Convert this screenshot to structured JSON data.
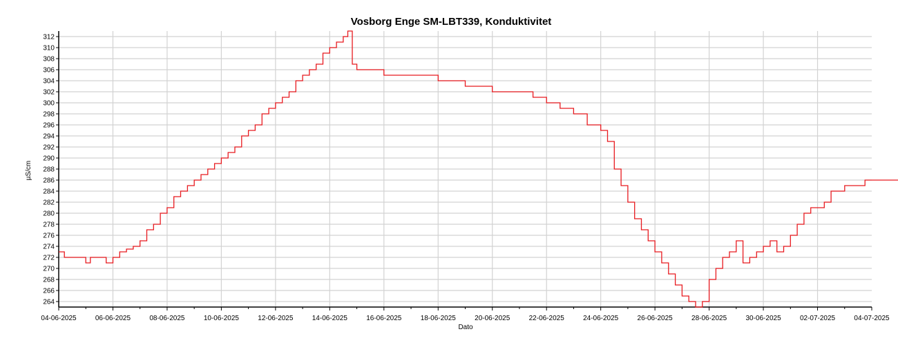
{
  "chart_data": {
    "type": "line",
    "title": "Vosborg Enge SM-LBT339, Konduktivitet",
    "xlabel": "Dato",
    "ylabel": "µS/cm",
    "x_tick_labels": [
      "04-06-2025",
      "06-06-2025",
      "08-06-2025",
      "10-06-2025",
      "12-06-2025",
      "14-06-2025",
      "16-06-2025",
      "18-06-2025",
      "20-06-2025",
      "22-06-2025",
      "24-06-2025",
      "26-06-2025",
      "28-06-2025",
      "30-06-2025",
      "02-07-2025",
      "04-07-2025"
    ],
    "y_tick_labels": [
      "264",
      "266",
      "268",
      "270",
      "272",
      "274",
      "276",
      "278",
      "280",
      "282",
      "284",
      "286",
      "288",
      "290",
      "292",
      "294",
      "296",
      "298",
      "300",
      "302",
      "304",
      "306",
      "308",
      "310",
      "312"
    ],
    "xlim": [
      "2025-06-04",
      "2025-07-04"
    ],
    "ylim": [
      263,
      313
    ],
    "grid": true,
    "line_color": "#e8191e",
    "series": [
      {
        "values": [
          [
            "2025-06-04T00:00",
            273
          ],
          [
            "2025-06-04T05:00",
            272
          ],
          [
            "2025-06-04T12:00",
            272
          ],
          [
            "2025-06-04T20:00",
            272
          ],
          [
            "2025-06-05T00:00",
            271
          ],
          [
            "2025-06-05T04:00",
            272
          ],
          [
            "2025-06-05T12:00",
            272
          ],
          [
            "2025-06-05T18:00",
            271
          ],
          [
            "2025-06-06T00:00",
            272
          ],
          [
            "2025-06-06T06:00",
            273
          ],
          [
            "2025-06-06T12:00",
            273.5
          ],
          [
            "2025-06-06T18:00",
            274
          ],
          [
            "2025-06-07T00:00",
            275
          ],
          [
            "2025-06-07T06:00",
            277
          ],
          [
            "2025-06-07T12:00",
            278
          ],
          [
            "2025-06-07T18:00",
            280
          ],
          [
            "2025-06-08T00:00",
            281
          ],
          [
            "2025-06-08T06:00",
            283
          ],
          [
            "2025-06-08T12:00",
            284
          ],
          [
            "2025-06-08T18:00",
            285
          ],
          [
            "2025-06-09T00:00",
            286
          ],
          [
            "2025-06-09T06:00",
            287
          ],
          [
            "2025-06-09T12:00",
            288
          ],
          [
            "2025-06-09T18:00",
            289
          ],
          [
            "2025-06-10T00:00",
            290
          ],
          [
            "2025-06-10T06:00",
            291
          ],
          [
            "2025-06-10T12:00",
            292
          ],
          [
            "2025-06-10T18:00",
            294
          ],
          [
            "2025-06-11T00:00",
            295
          ],
          [
            "2025-06-11T06:00",
            296
          ],
          [
            "2025-06-11T12:00",
            298
          ],
          [
            "2025-06-11T18:00",
            299
          ],
          [
            "2025-06-12T00:00",
            300
          ],
          [
            "2025-06-12T06:00",
            301
          ],
          [
            "2025-06-12T12:00",
            302
          ],
          [
            "2025-06-12T18:00",
            304
          ],
          [
            "2025-06-13T00:00",
            305
          ],
          [
            "2025-06-13T06:00",
            306
          ],
          [
            "2025-06-13T12:00",
            307
          ],
          [
            "2025-06-13T18:00",
            309
          ],
          [
            "2025-06-14T00:00",
            310
          ],
          [
            "2025-06-14T06:00",
            311
          ],
          [
            "2025-06-14T12:00",
            312
          ],
          [
            "2025-06-14T16:00",
            313
          ],
          [
            "2025-06-14T20:00",
            307
          ],
          [
            "2025-06-15T00:00",
            306
          ],
          [
            "2025-06-15T12:00",
            306
          ],
          [
            "2025-06-16T00:00",
            305
          ],
          [
            "2025-06-16T12:00",
            305
          ],
          [
            "2025-06-17T00:00",
            305
          ],
          [
            "2025-06-17T12:00",
            305
          ],
          [
            "2025-06-18T00:00",
            304
          ],
          [
            "2025-06-18T12:00",
            304
          ],
          [
            "2025-06-19T00:00",
            303
          ],
          [
            "2025-06-19T12:00",
            303
          ],
          [
            "2025-06-20T00:00",
            302
          ],
          [
            "2025-06-20T12:00",
            302
          ],
          [
            "2025-06-21T00:00",
            302
          ],
          [
            "2025-06-21T12:00",
            301
          ],
          [
            "2025-06-22T00:00",
            300
          ],
          [
            "2025-06-22T12:00",
            299
          ],
          [
            "2025-06-23T00:00",
            298
          ],
          [
            "2025-06-23T12:00",
            296
          ],
          [
            "2025-06-24T00:00",
            295
          ],
          [
            "2025-06-24T06:00",
            293
          ],
          [
            "2025-06-24T12:00",
            288
          ],
          [
            "2025-06-24T18:00",
            285
          ],
          [
            "2025-06-25T00:00",
            282
          ],
          [
            "2025-06-25T06:00",
            279
          ],
          [
            "2025-06-25T12:00",
            277
          ],
          [
            "2025-06-25T18:00",
            275
          ],
          [
            "2025-06-26T00:00",
            273
          ],
          [
            "2025-06-26T06:00",
            271
          ],
          [
            "2025-06-26T12:00",
            269
          ],
          [
            "2025-06-26T18:00",
            267
          ],
          [
            "2025-06-27T00:00",
            265
          ],
          [
            "2025-06-27T06:00",
            264
          ],
          [
            "2025-06-27T12:00",
            263
          ],
          [
            "2025-06-27T18:00",
            264
          ],
          [
            "2025-06-28T00:00",
            268
          ],
          [
            "2025-06-28T06:00",
            270
          ],
          [
            "2025-06-28T12:00",
            272
          ],
          [
            "2025-06-28T18:00",
            273
          ],
          [
            "2025-06-29T00:00",
            275
          ],
          [
            "2025-06-29T06:00",
            271
          ],
          [
            "2025-06-29T12:00",
            272
          ],
          [
            "2025-06-29T18:00",
            273
          ],
          [
            "2025-06-30T00:00",
            274
          ],
          [
            "2025-06-30T06:00",
            275
          ],
          [
            "2025-06-30T12:00",
            273
          ],
          [
            "2025-06-30T18:00",
            274
          ],
          [
            "2025-07-01T00:00",
            276
          ],
          [
            "2025-07-01T06:00",
            278
          ],
          [
            "2025-07-01T12:00",
            280
          ],
          [
            "2025-07-01T18:00",
            281
          ],
          [
            "2025-07-02T00:00",
            281
          ],
          [
            "2025-07-02T06:00",
            282
          ],
          [
            "2025-07-02T12:00",
            284
          ],
          [
            "2025-07-02T18:00",
            284
          ],
          [
            "2025-07-03T00:00",
            285
          ],
          [
            "2025-07-03T06:00",
            285
          ],
          [
            "2025-07-03T12:00",
            285
          ],
          [
            "2025-07-03T18:00",
            286
          ],
          [
            "2025-07-04T00:00",
            286
          ],
          [
            "2025-07-04T06:00",
            286
          ],
          [
            "2025-07-04T12:00",
            286
          ],
          [
            "2025-07-04T18:00",
            286
          ],
          [
            "2025-07-05T00:00",
            287
          ],
          [
            "2025-07-05T06:00",
            287
          ]
        ]
      }
    ]
  }
}
